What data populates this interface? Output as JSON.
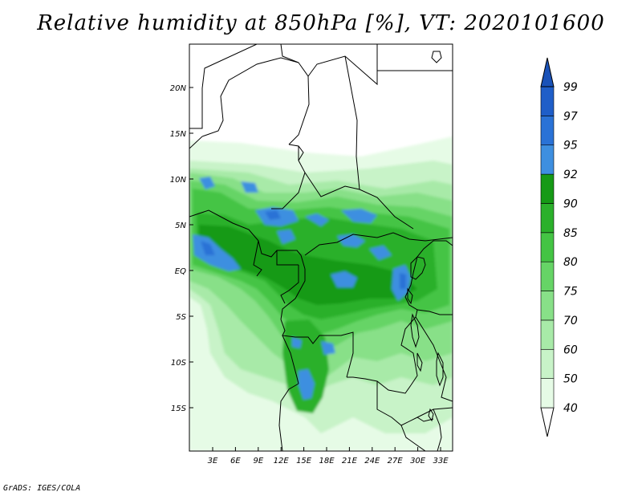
{
  "title": "Relative humidity at 850hPa [%], VT: 2020101600",
  "credit": "GrADS: IGES/COLA",
  "map": {
    "lat_labels": [
      "20N",
      "15N",
      "10N",
      "5N",
      "EQ",
      "5S",
      "10S",
      "15S"
    ],
    "lon_labels": [
      "3E",
      "6E",
      "9E",
      "12E",
      "15E",
      "18E",
      "21E",
      "24E",
      "27E",
      "30E",
      "33E"
    ]
  },
  "colorbar": {
    "labels": [
      "40",
      "50",
      "60",
      "70",
      "75",
      "80",
      "85",
      "90",
      "92",
      "95",
      "97",
      "99"
    ],
    "colors": [
      "#ffffff",
      "#e6fbe6",
      "#c8f3c8",
      "#a8eaa8",
      "#88e088",
      "#66d466",
      "#44c444",
      "#2bb02b",
      "#169a16",
      "#3e8fe0",
      "#2a72d6",
      "#1f5ec8"
    ]
  },
  "field_colors": {
    "c40": "#ffffff",
    "c50": "#e6fbe6",
    "c60": "#c8f3c8",
    "c70": "#a8eaa8",
    "c75": "#88e088",
    "c80": "#66d466",
    "c85": "#44c444",
    "c90": "#2bb02b",
    "c92": "#169a16",
    "c95": "#3e8fe0",
    "c97": "#2a72d6"
  }
}
